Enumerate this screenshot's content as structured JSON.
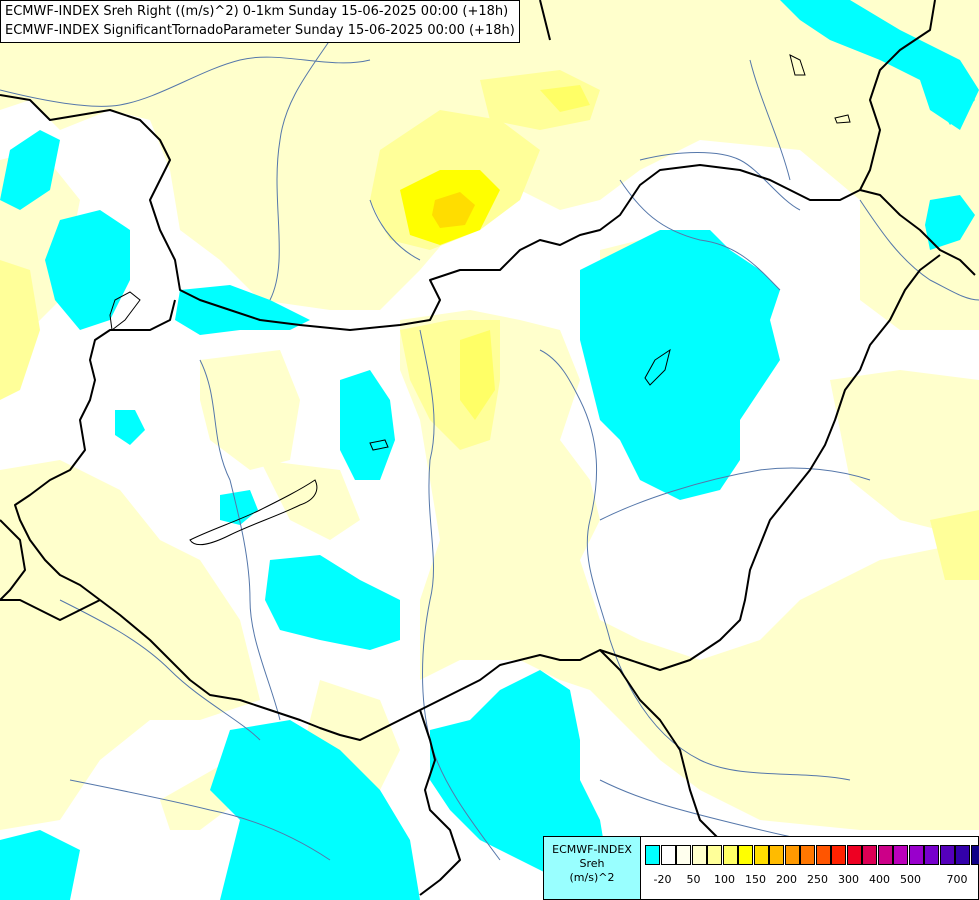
{
  "title": {
    "line1": "ECMWF-INDEX Sreh Right ((m/s)^2) 0-1km Sunday 15-06-2025 00:00 (+18h)",
    "line2": "ECMWF-INDEX SignificantTornadoParameter Sunday 15-06-2025 00:00 (+18h)"
  },
  "colors": {
    "background": "#ffffff",
    "pale_yellow": "#ffffcc",
    "light_yellow": "#ffff99",
    "yellow": "#ffff00",
    "gold": "#ffdd00",
    "cyan": "#00ffff",
    "border": "#000000",
    "river": "#5577aa"
  },
  "legend": {
    "label_line1": "ECMWF-INDEX",
    "label_line2": "Sreh",
    "label_line3": "(m/s)^2",
    "swatch_colors": [
      "#00ffff",
      "#ffffff",
      "#ffffee",
      "#ffffcc",
      "#ffff99",
      "#ffff66",
      "#ffff00",
      "#ffdd00",
      "#ffbb00",
      "#ff9900",
      "#ff7700",
      "#ff5500",
      "#ff2200",
      "#ee0022",
      "#dd0055",
      "#cc0088",
      "#bb00bb",
      "#9900cc",
      "#7700cc",
      "#5500bb",
      "#3300aa",
      "#110088"
    ],
    "tick_labels": [
      "-20",
      "50",
      "100",
      "150",
      "200",
      "250",
      "300",
      "400",
      "500",
      "700"
    ]
  }
}
